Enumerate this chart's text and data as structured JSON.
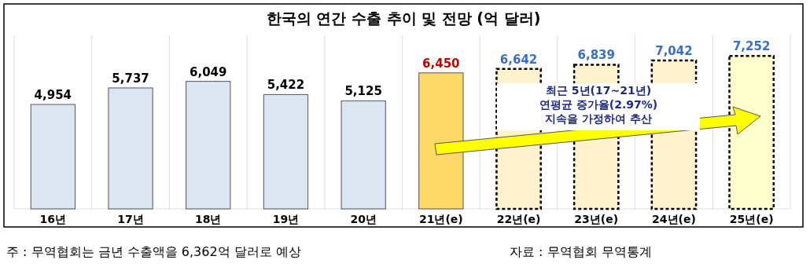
{
  "chart_data": {
    "type": "bar",
    "title": "한국의 연간 수출 추이 및 전망 (억 달러)",
    "categories": [
      "16년",
      "17년",
      "18년",
      "19년",
      "20년",
      "21년(e)",
      "22년(e)",
      "23년(e)",
      "24년(e)",
      "25년(e)"
    ],
    "series": [
      {
        "values": [
          4954,
          5737,
          6049,
          5422,
          5125,
          6450,
          null,
          null,
          null,
          null
        ],
        "value_labels": [
          "4,954",
          "5,737",
          "6,049",
          "5,422",
          "5,125",
          "6,450",
          null,
          null,
          null,
          null
        ],
        "colors": [
          "#dce6f2",
          "#dce6f2",
          "#dce6f2",
          "#dce6f2",
          "#dce6f2",
          "#ffd966",
          null,
          null,
          null,
          null
        ],
        "line_style": "solid"
      },
      {
        "values": [
          null,
          null,
          null,
          null,
          null,
          null,
          6642,
          6839,
          7042,
          7252
        ],
        "value_labels": [
          null,
          null,
          null,
          null,
          null,
          null,
          "6,642",
          "6,839",
          "7,042",
          "7,252"
        ],
        "colors": [
          null,
          null,
          null,
          null,
          null,
          null,
          "#fff2cc",
          "#fff2cc",
          "#fff2cc",
          "#ffffcc"
        ],
        "line_style": "dashed"
      }
    ],
    "grid": "x",
    "annotations": [
      "최근 5년(17~21년)\n연평균 증가율(2.97%)\n지속을 가정하여 추산",
      "주 : 무역협회는 금년 수출액을 6,362억 달러로 예상",
      "자료 : 무역협회 무역통계"
    ]
  }
}
